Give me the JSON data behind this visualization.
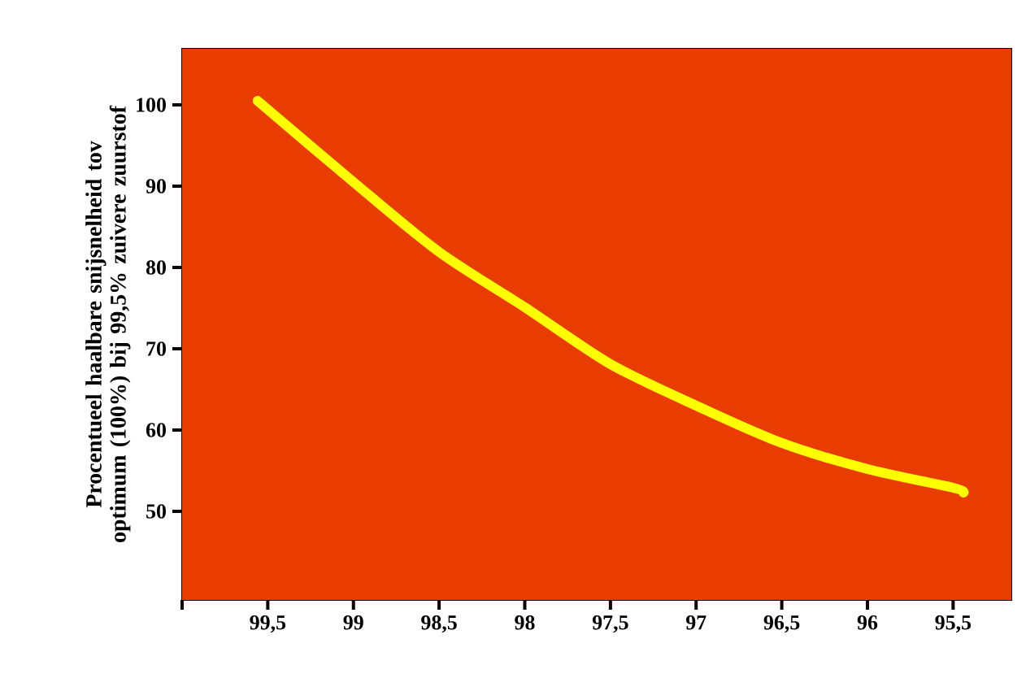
{
  "chart_data": {
    "type": "line",
    "ylabel": "Procentueel haalbare snijsnelheid tov optimum (100%) bij 99,5% zuivere zuurstof",
    "x": [
      99.56,
      99,
      98.5,
      98,
      97.5,
      97,
      96.5,
      96,
      95.5,
      95.44
    ],
    "series": [
      {
        "color": "#ffff00",
        "values": [
          100.5,
          90.5,
          81.9,
          75.1,
          68.1,
          63.0,
          58.4,
          55.2,
          52.9,
          52.3
        ]
      }
    ],
    "xlim": [
      100,
      95.16
    ],
    "ylim": [
      39.1,
      106.9
    ],
    "xticks": [
      {
        "value": 100,
        "label": null
      },
      {
        "value": 99.5,
        "label": "99,5"
      },
      {
        "value": 99,
        "label": "99"
      },
      {
        "value": 98.5,
        "label": "98,5"
      },
      {
        "value": 98,
        "label": "98"
      },
      {
        "value": 97.5,
        "label": "97,5"
      },
      {
        "value": 97,
        "label": "97"
      },
      {
        "value": 96.5,
        "label": "96,5"
      },
      {
        "value": 96,
        "label": "96"
      },
      {
        "value": 95.5,
        "label": "95,5"
      }
    ],
    "yticks": [
      50,
      60,
      70,
      80,
      90,
      100
    ],
    "marker": "none",
    "line_style": "solid"
  }
}
